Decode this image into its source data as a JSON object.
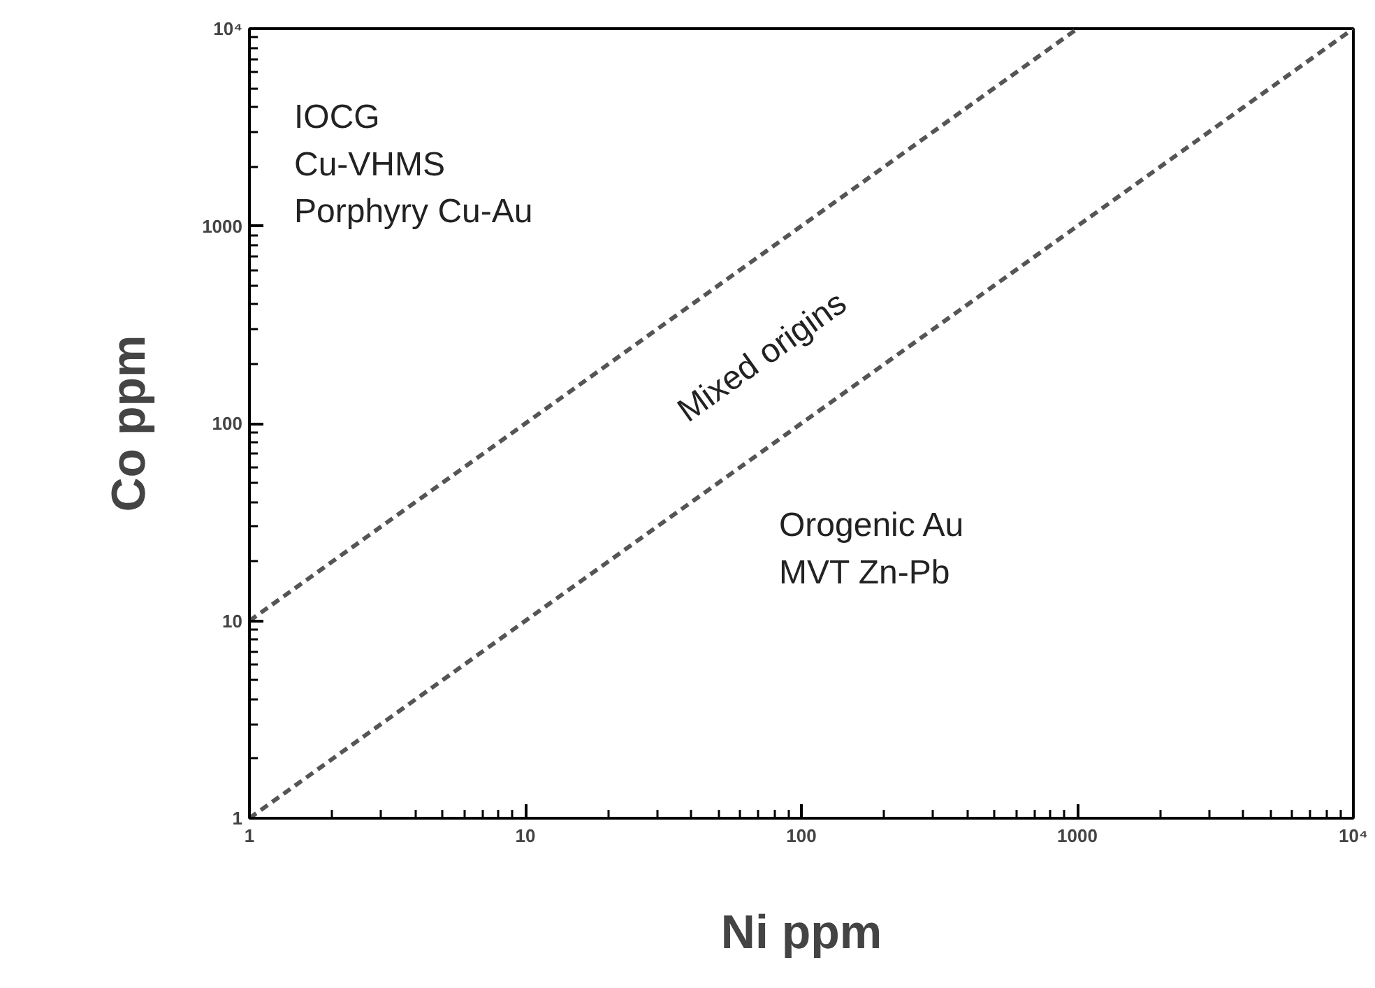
{
  "chart_data": {
    "type": "line",
    "xlabel": "Ni ppm",
    "ylabel": "Co ppm",
    "log": "xy",
    "grid": false,
    "line_style": "dashed",
    "marker": "none",
    "xlim": [
      1,
      10000
    ],
    "ylim": [
      1,
      10000
    ],
    "xticks": [
      1,
      10,
      100,
      1000,
      {
        "value": 10000,
        "label": "10⁴"
      }
    ],
    "yticks": [
      1,
      10,
      100,
      1000,
      {
        "value": 10000,
        "label": "10⁴"
      }
    ],
    "series": [
      {
        "color": "#555555",
        "x": [
          1,
          1000
        ],
        "values": [
          10,
          10000
        ]
      },
      {
        "color": "#555555",
        "x": [
          1,
          10000
        ],
        "values": [
          1,
          10000
        ]
      }
    ],
    "annotations": [
      "IOCG\nCu-VHMS\nPorphyry Cu-Au",
      "Mixed origins",
      "Orogenic Au\nMVT Zn-Pb"
    ]
  }
}
